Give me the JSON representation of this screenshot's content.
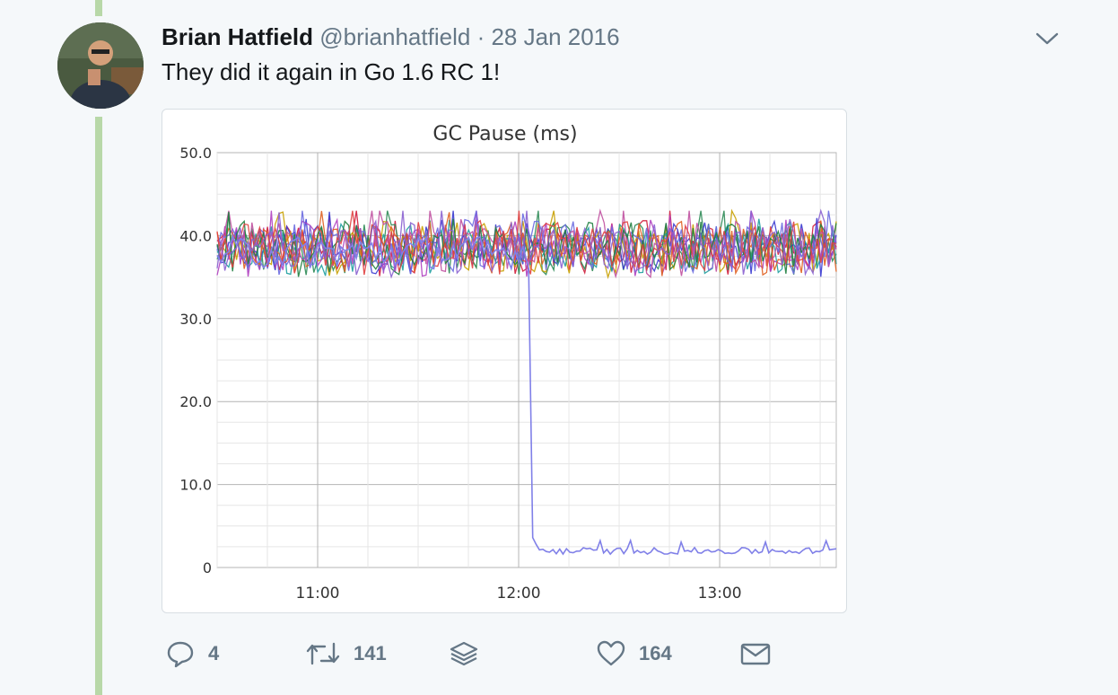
{
  "tweet": {
    "author_name": "Brian Hatfield",
    "handle": "@brianhatfield",
    "separator": "·",
    "date": "28 Jan 2016",
    "text": "They did it again in Go 1.6 RC 1!"
  },
  "actions": {
    "reply_count": "4",
    "retweet_count": "141",
    "like_count": "164"
  },
  "icons": {
    "caret": "chevron-down-icon",
    "reply": "reply-icon",
    "retweet": "retweet-icon",
    "stack": "layers-icon",
    "like": "heart-icon",
    "dm": "envelope-icon"
  },
  "colors": {
    "thread_line": "#b8d8a8",
    "muted": "#657786",
    "background": "#f5f8fa"
  },
  "chart_data": {
    "type": "line",
    "title": "GC Pause (ms)",
    "ylim": [
      0,
      50
    ],
    "yticks": [
      "0",
      "10.0",
      "20.0",
      "30.0",
      "40.0",
      "50.0"
    ],
    "xticks": [
      "11:00",
      "12:00",
      "13:00"
    ],
    "xtick_hours": [
      11,
      12,
      13
    ],
    "xlim_hours": [
      10.5,
      13.58
    ],
    "grid": true,
    "series_band": {
      "min": 35,
      "max": 43,
      "center": 38.5
    },
    "series_colors": [
      "#d01c3a",
      "#2e8b57",
      "#3a3ad0",
      "#c8a000",
      "#20a0a0",
      "#b040c0",
      "#e06020",
      "#6a6ae0",
      "#c050a0",
      "#208040",
      "#e04040",
      "#8a60d0"
    ],
    "highlight_series": {
      "color": "#8080e8",
      "before_level": 38,
      "drop_time_hours": 12.05,
      "after_level": 2,
      "after_range": [
        1.5,
        3.6
      ]
    }
  }
}
